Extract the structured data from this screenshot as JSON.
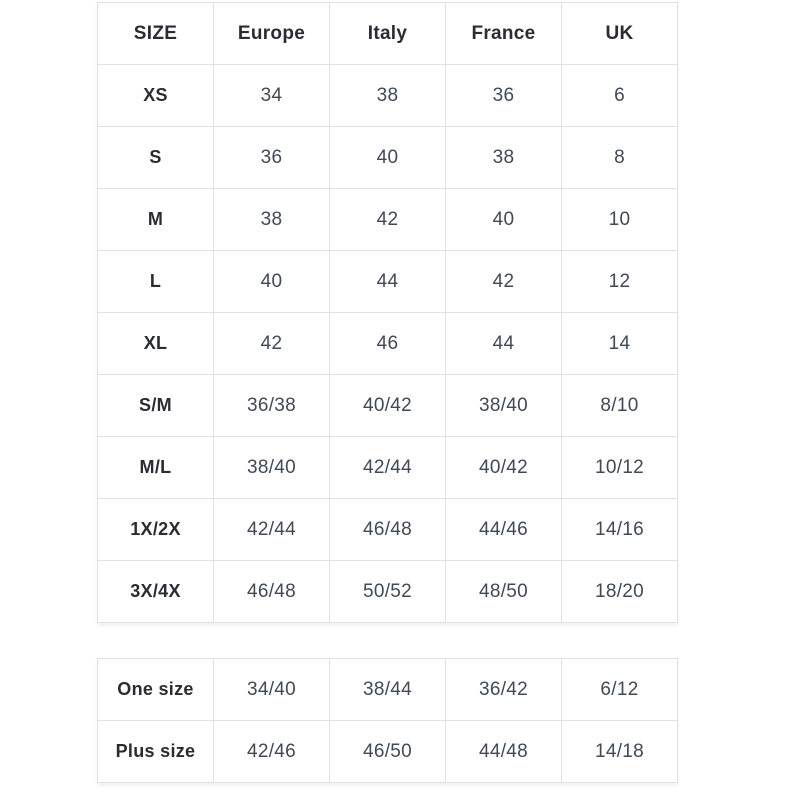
{
  "colors": {
    "border": "#e1e1e1",
    "heading_text": "#2b2b33",
    "value_text": "#414956",
    "background": "#ffffff"
  },
  "size_table": {
    "headers": [
      "SIZE",
      "Europe",
      "Italy",
      "France",
      "UK"
    ],
    "rows": [
      {
        "label": "XS",
        "values": [
          "34",
          "38",
          "36",
          "6"
        ]
      },
      {
        "label": "S",
        "values": [
          "36",
          "40",
          "38",
          "8"
        ]
      },
      {
        "label": "M",
        "values": [
          "38",
          "42",
          "40",
          "10"
        ]
      },
      {
        "label": "L",
        "values": [
          "40",
          "44",
          "42",
          "12"
        ]
      },
      {
        "label": "XL",
        "values": [
          "42",
          "46",
          "44",
          "14"
        ]
      },
      {
        "label": "S/M",
        "values": [
          "36/38",
          "40/42",
          "38/40",
          "8/10"
        ]
      },
      {
        "label": "M/L",
        "values": [
          "38/40",
          "42/44",
          "40/42",
          "10/12"
        ]
      },
      {
        "label": "1X/2X",
        "values": [
          "42/44",
          "46/48",
          "44/46",
          "14/16"
        ]
      },
      {
        "label": "3X/4X",
        "values": [
          "46/48",
          "50/52",
          "48/50",
          "18/20"
        ]
      }
    ]
  },
  "special_size_table": {
    "rows": [
      {
        "label": "One size",
        "values": [
          "34/40",
          "38/44",
          "36/42",
          "6/12"
        ]
      },
      {
        "label": "Plus size",
        "values": [
          "42/46",
          "46/50",
          "44/48",
          "14/18"
        ]
      }
    ]
  }
}
